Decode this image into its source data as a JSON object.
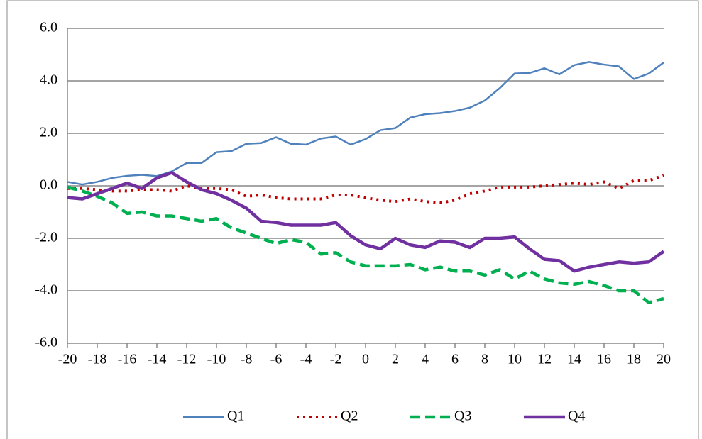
{
  "chart_data": {
    "type": "line",
    "x": [
      -20,
      -19,
      -18,
      -17,
      -16,
      -15,
      -14,
      -13,
      -12,
      -11,
      -10,
      -9,
      -8,
      -7,
      -6,
      -5,
      -4,
      -3,
      -2,
      -1,
      0,
      1,
      2,
      3,
      4,
      5,
      6,
      7,
      8,
      9,
      10,
      11,
      12,
      13,
      14,
      15,
      16,
      17,
      18,
      19,
      20
    ],
    "series": [
      {
        "name": "Q1",
        "color": "#4f81bd",
        "line_style": "solid",
        "line_width": 2.5,
        "values": [
          0.15,
          0.05,
          0.15,
          0.3,
          0.38,
          0.42,
          0.37,
          0.55,
          0.87,
          0.87,
          1.28,
          1.32,
          1.6,
          1.63,
          1.85,
          1.6,
          1.57,
          1.8,
          1.88,
          1.57,
          1.78,
          2.12,
          2.2,
          2.6,
          2.73,
          2.77,
          2.85,
          2.98,
          3.25,
          3.72,
          4.28,
          4.3,
          4.48,
          4.25,
          4.6,
          4.72,
          4.62,
          4.55,
          4.07,
          4.28,
          4.7
        ]
      },
      {
        "name": "Q2",
        "color": "#c00000",
        "line_style": "dotted",
        "line_width": 4,
        "values": [
          -0.1,
          -0.1,
          -0.15,
          -0.2,
          -0.2,
          -0.15,
          -0.15,
          -0.2,
          0.0,
          -0.1,
          -0.1,
          -0.15,
          -0.4,
          -0.35,
          -0.45,
          -0.5,
          -0.5,
          -0.5,
          -0.35,
          -0.35,
          -0.45,
          -0.55,
          -0.6,
          -0.5,
          -0.6,
          -0.65,
          -0.55,
          -0.3,
          -0.2,
          -0.05,
          -0.05,
          -0.05,
          0.0,
          0.05,
          0.1,
          0.05,
          0.15,
          -0.1,
          0.2,
          0.2,
          0.4
        ]
      },
      {
        "name": "Q3",
        "color": "#00b050",
        "line_style": "dashed",
        "line_width": 4.5,
        "values": [
          -0.05,
          -0.2,
          -0.4,
          -0.65,
          -1.05,
          -1.0,
          -1.15,
          -1.15,
          -1.25,
          -1.35,
          -1.25,
          -1.6,
          -1.8,
          -2.0,
          -2.2,
          -2.05,
          -2.15,
          -2.6,
          -2.55,
          -2.9,
          -3.05,
          -3.05,
          -3.05,
          -3.0,
          -3.2,
          -3.1,
          -3.25,
          -3.25,
          -3.4,
          -3.2,
          -3.55,
          -3.25,
          -3.55,
          -3.7,
          -3.75,
          -3.65,
          -3.8,
          -4.0,
          -4.0,
          -4.45,
          -4.3
        ]
      },
      {
        "name": "Q4",
        "color": "#7030a0",
        "line_style": "solid",
        "line_width": 4.5,
        "values": [
          -0.45,
          -0.5,
          -0.3,
          -0.1,
          0.1,
          -0.1,
          0.3,
          0.5,
          0.15,
          -0.15,
          -0.3,
          -0.55,
          -0.85,
          -1.35,
          -1.4,
          -1.5,
          -1.5,
          -1.5,
          -1.4,
          -1.9,
          -2.25,
          -2.4,
          -2.0,
          -2.25,
          -2.35,
          -2.1,
          -2.15,
          -2.35,
          -2.0,
          -2.0,
          -1.95,
          -2.4,
          -2.8,
          -2.85,
          -3.25,
          -3.1,
          -3.0,
          -2.9,
          -2.95,
          -2.9,
          -2.5
        ]
      }
    ],
    "xlim": [
      -20,
      20
    ],
    "xticks": [
      -20,
      -18,
      -16,
      -14,
      -12,
      -10,
      -8,
      -6,
      -4,
      -2,
      0,
      2,
      4,
      6,
      8,
      10,
      12,
      14,
      16,
      18,
      20
    ],
    "ylim": [
      -6,
      6
    ],
    "yticks": [
      {
        "value": -6,
        "label": "-6.0"
      },
      {
        "value": -4,
        "label": "-4.0"
      },
      {
        "value": -2,
        "label": "-2.0"
      },
      {
        "value": 0,
        "label": "0.0"
      },
      {
        "value": 2,
        "label": "2.0"
      },
      {
        "value": 4,
        "label": "4.0"
      },
      {
        "value": 6,
        "label": "6.0"
      }
    ],
    "grid": true,
    "legend": "bottom"
  }
}
